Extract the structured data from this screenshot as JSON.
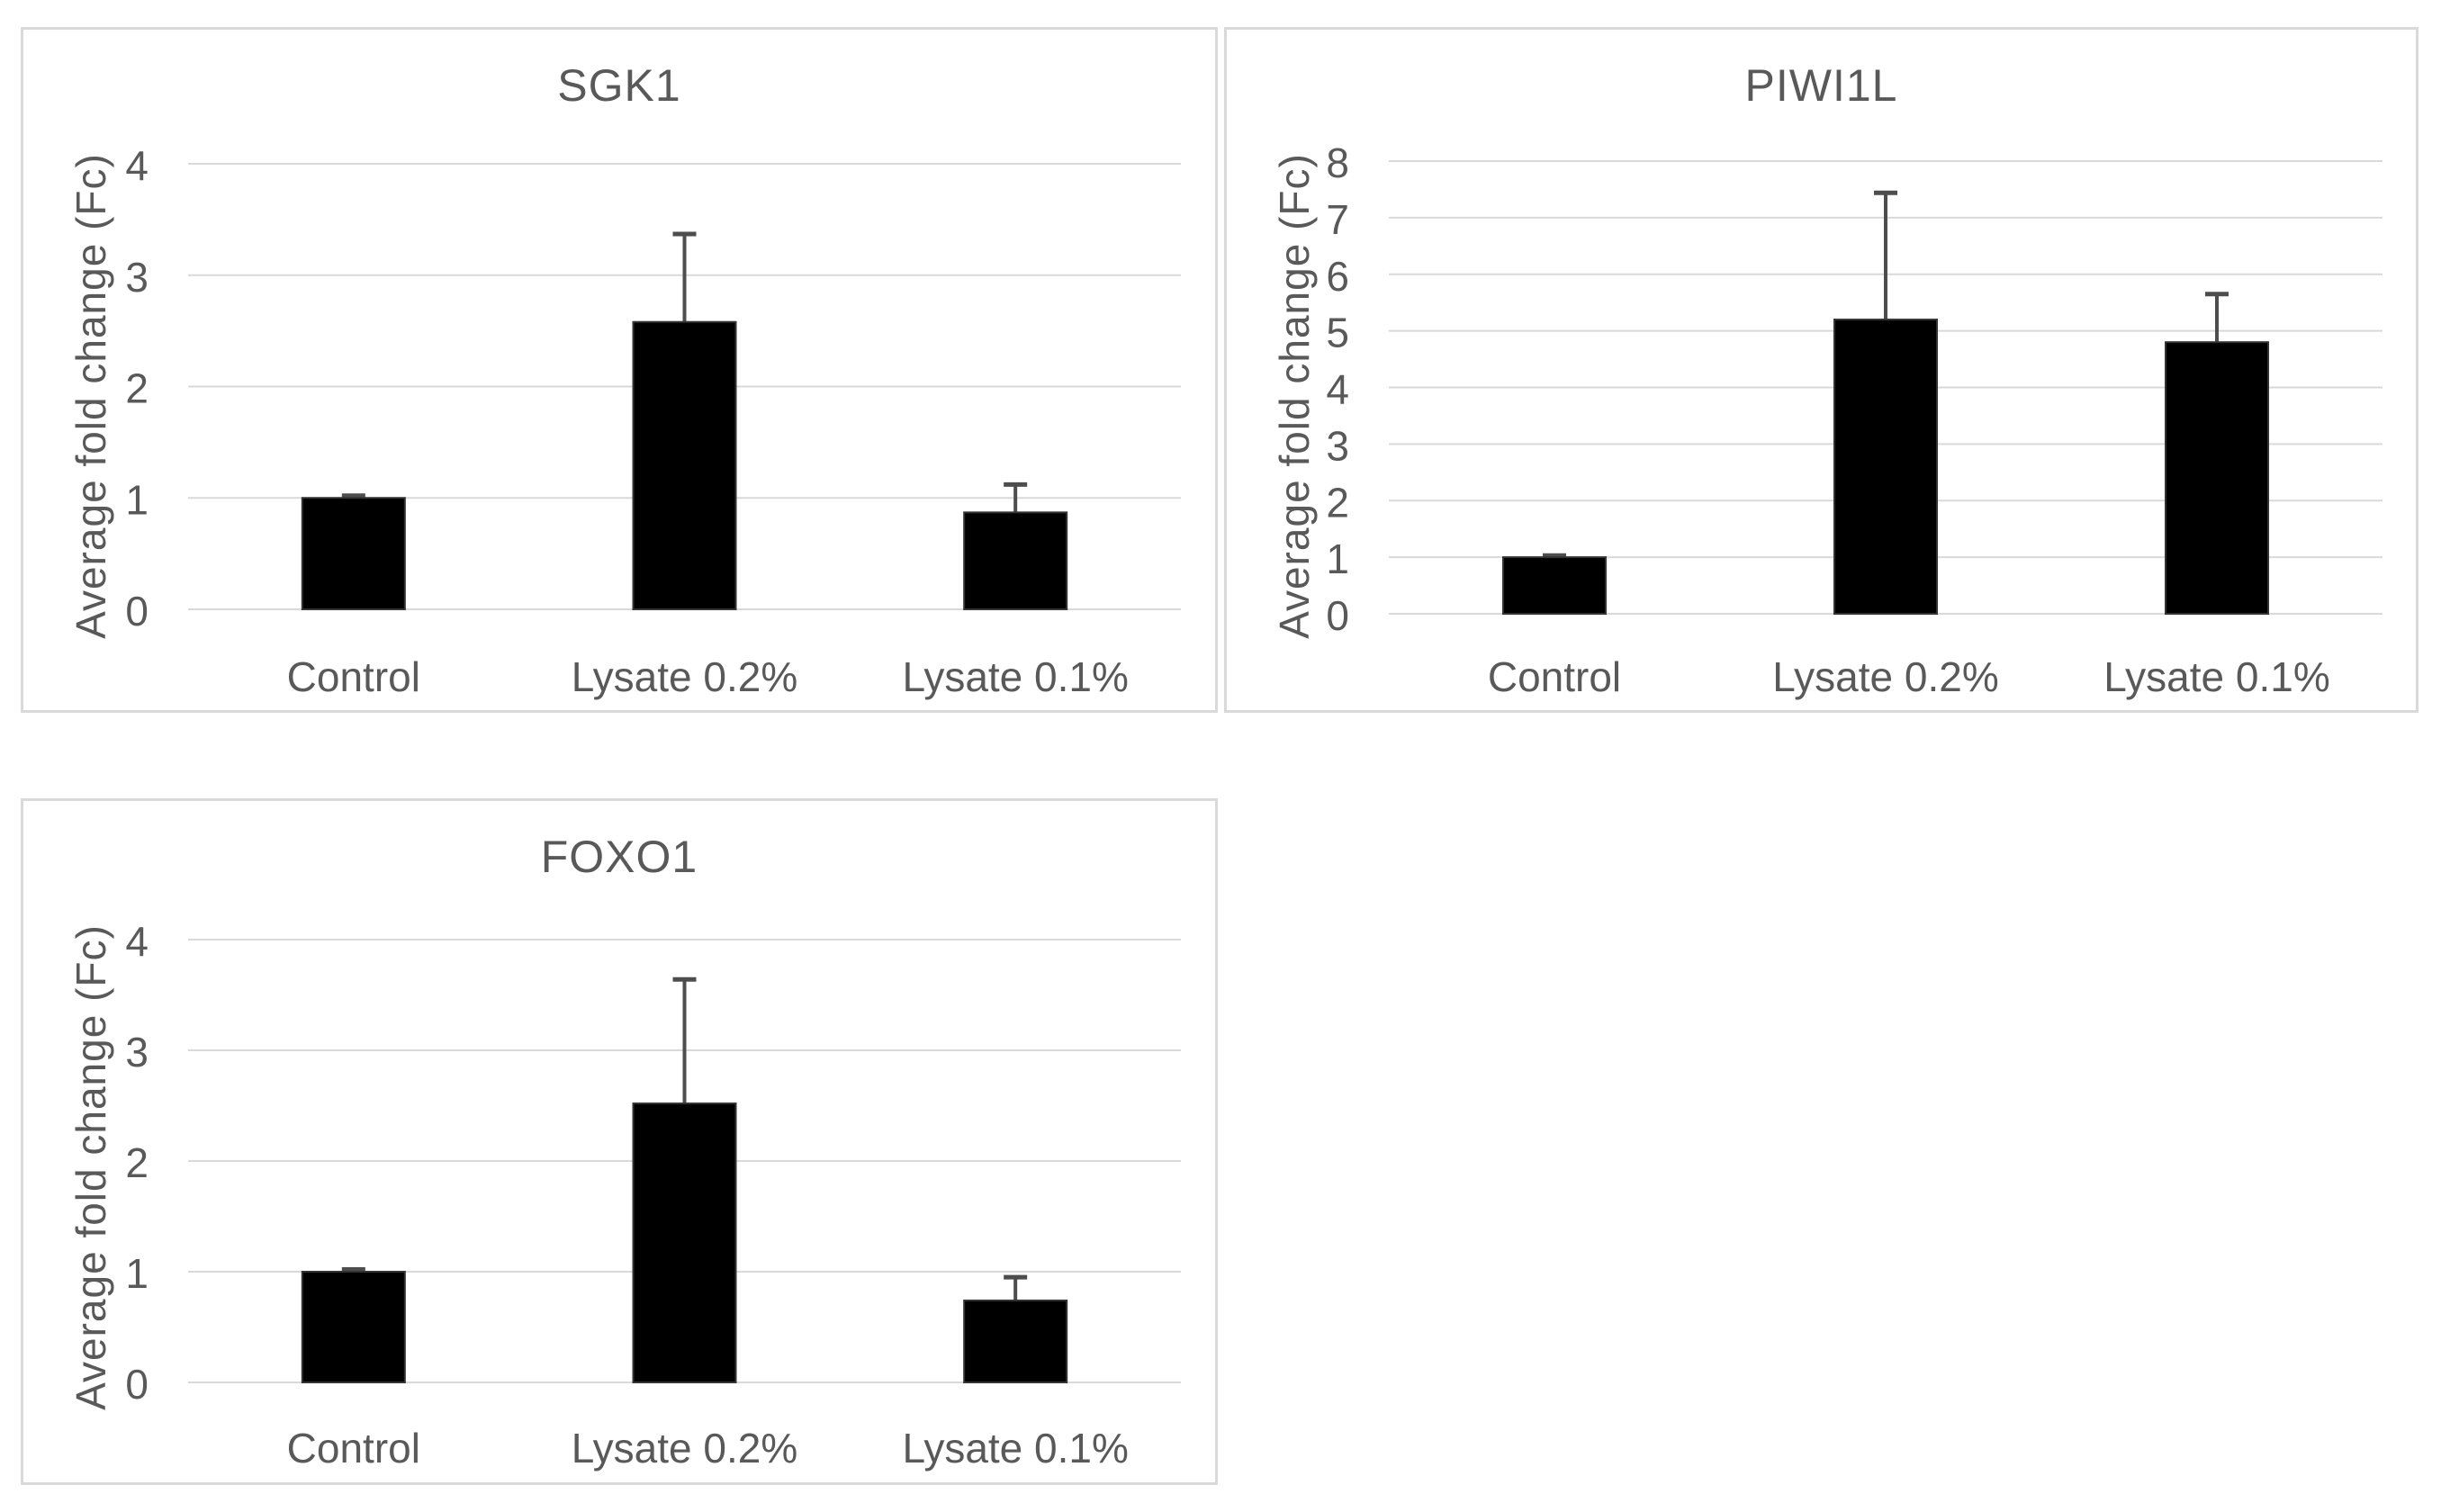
{
  "figure": {
    "background": "#ffffff",
    "colors": {
      "bar": "#000000",
      "error_bar": "#4d4d4d",
      "gridline": "#d9d9d9",
      "panel_border": "#d9d9d9",
      "text": "#595959"
    }
  },
  "chart_data": [
    {
      "type": "bar",
      "title": "SGK1",
      "ylabel": "Average fold change (Fc)",
      "xlabel": "",
      "categories": [
        "Control",
        "Lysate 0.2%",
        "Lysate 0.1%"
      ],
      "values": [
        1.0,
        2.58,
        0.87
      ],
      "error_plus": [
        0.02,
        0.79,
        0.25
      ],
      "ylim": [
        0,
        4
      ],
      "yticks": [
        0,
        1,
        2,
        3,
        4
      ],
      "grid": true,
      "legend": false
    },
    {
      "type": "bar",
      "title": "PIWI1L",
      "ylabel": "Average fold change (Fc)",
      "xlabel": "",
      "categories": [
        "Control",
        "Lysate 0.2%",
        "Lysate 0.1%"
      ],
      "values": [
        1.0,
        5.2,
        4.8
      ],
      "error_plus": [
        0.03,
        2.24,
        0.85
      ],
      "ylim": [
        0,
        8
      ],
      "yticks": [
        0,
        1,
        2,
        3,
        4,
        5,
        6,
        7,
        8
      ],
      "grid": true,
      "legend": false
    },
    {
      "type": "bar",
      "title": "FOXO1",
      "ylabel": "Average fold change (Fc)",
      "xlabel": "",
      "categories": [
        "Control",
        "Lysate 0.2%",
        "Lysate 0.1%"
      ],
      "values": [
        1.0,
        2.52,
        0.74
      ],
      "error_plus": [
        0.02,
        1.12,
        0.21
      ],
      "ylim": [
        0,
        4
      ],
      "yticks": [
        0,
        1,
        2,
        3,
        4
      ],
      "grid": true,
      "legend": false
    }
  ]
}
